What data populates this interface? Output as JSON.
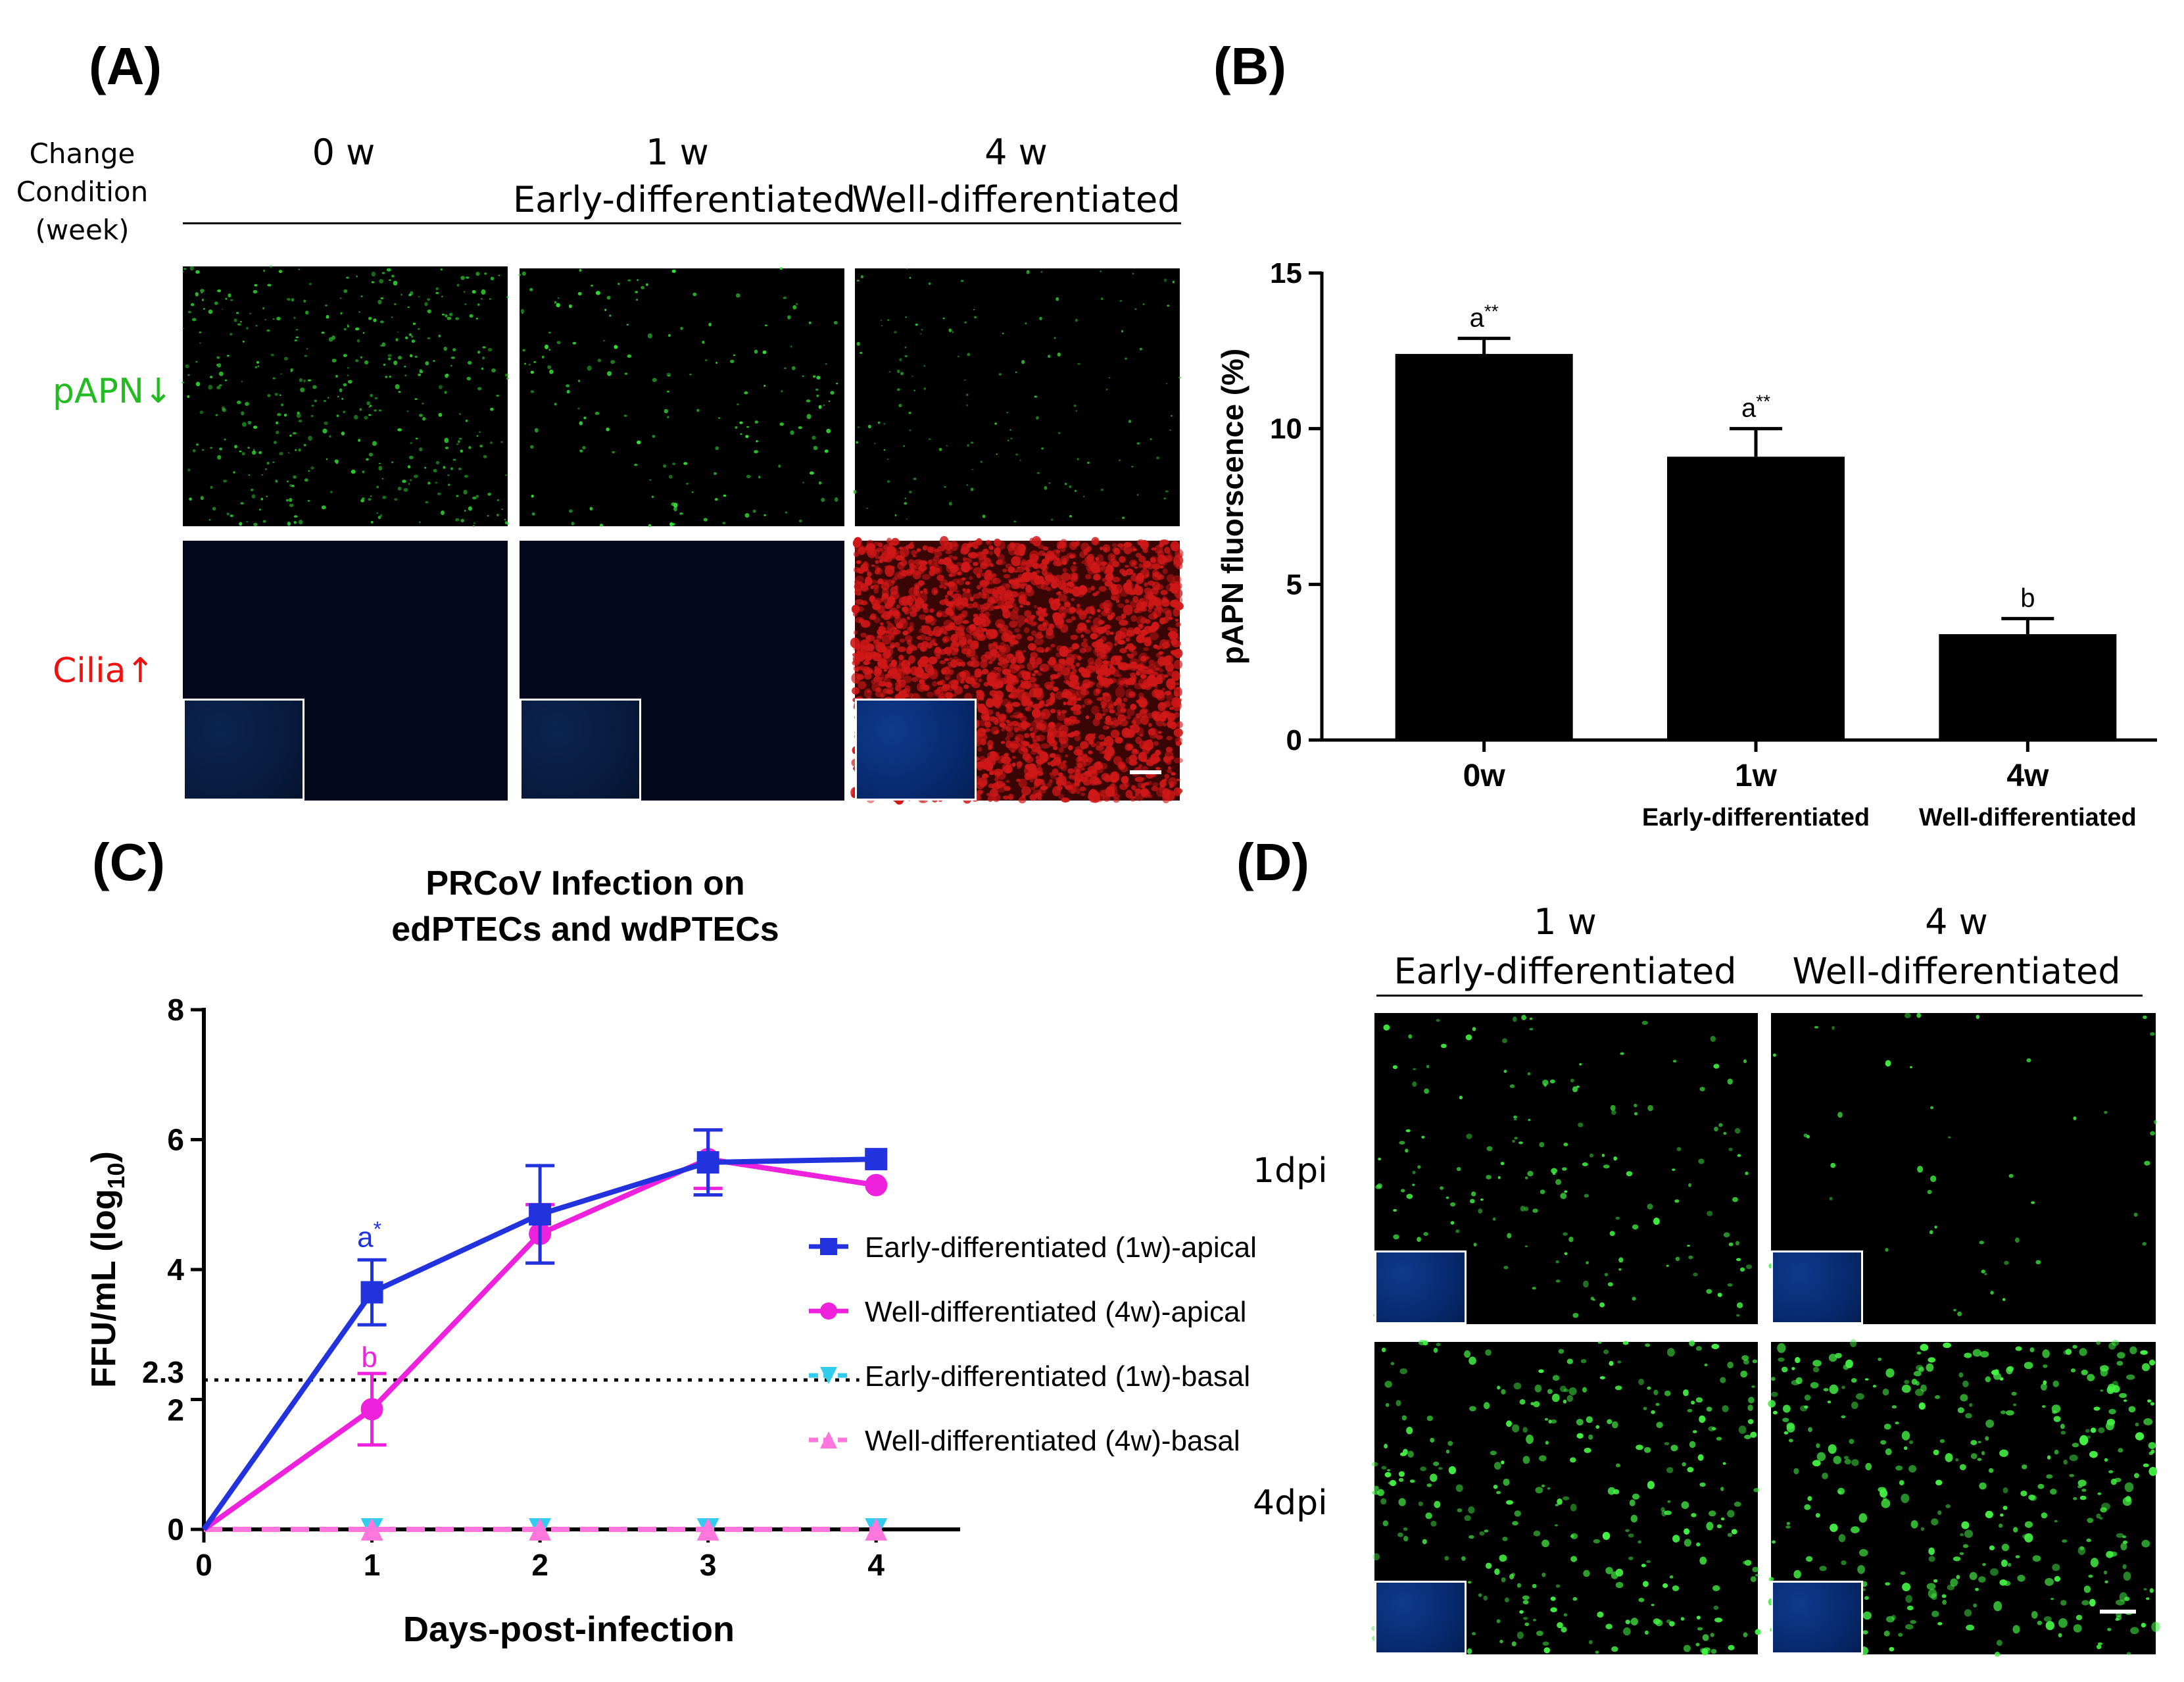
{
  "panelA": {
    "label": "(A)",
    "row_header": [
      "Change",
      "Condition",
      "(week)"
    ],
    "columns": [
      {
        "time": "0 w",
        "state": ""
      },
      {
        "time": "1 w",
        "state": "Early-differentiated"
      },
      {
        "time": "4 w",
        "state": "Well-differentiated"
      }
    ],
    "rows": [
      {
        "label": "pAPN↓",
        "color": "#22bb22"
      },
      {
        "label": "Cilia↑",
        "color": "#ee1111"
      }
    ]
  },
  "panelB": {
    "label": "(B)",
    "chart_data": {
      "type": "bar",
      "ylabel": "pAPN fluorscence (%)",
      "ylim": [
        0,
        15
      ],
      "yticks": [
        0,
        5,
        10,
        15
      ],
      "categories": [
        "0w",
        "1w",
        "4w"
      ],
      "sublabels": [
        "",
        "Early-differentiated",
        "Well-differentiated"
      ],
      "values": [
        12.4,
        9.1,
        3.4
      ],
      "errors": [
        0.5,
        0.9,
        0.5
      ],
      "annotations": [
        "a**",
        "a**",
        "b"
      ],
      "bar_color": "#000000"
    }
  },
  "panelC": {
    "label": "(C)",
    "chart_data": {
      "type": "line",
      "title": [
        "PRCoV Infection on",
        "edPTECs and wdPTECs"
      ],
      "xlabel": "Days-post-infection",
      "ylabel": "FFU/mL (log10)",
      "xlim": [
        0,
        4.5
      ],
      "ylim": [
        0,
        8
      ],
      "xticks": [
        0,
        1,
        2,
        3,
        4
      ],
      "yticks": [
        0,
        2,
        4,
        6,
        8
      ],
      "threshold": {
        "value": 2.3,
        "label": "2.3"
      },
      "x": [
        0,
        1,
        2,
        3,
        4
      ],
      "series": [
        {
          "name": "Early-differentiated (1w)-apical",
          "color": "#2233dd",
          "marker": "square",
          "dashed": false,
          "values": [
            0,
            3.65,
            4.85,
            5.65,
            5.7
          ],
          "errors": [
            0,
            0.5,
            0.75,
            0.5,
            0
          ]
        },
        {
          "name": "Well-differentiated (4w)-apical",
          "color": "#ee22dd",
          "marker": "circle",
          "dashed": false,
          "values": [
            0,
            1.85,
            4.55,
            5.7,
            5.3
          ],
          "errors": [
            0,
            0.55,
            0.45,
            0.45,
            0
          ]
        },
        {
          "name": "Early-differentiated (1w)-basal",
          "color": "#33ccee",
          "marker": "triangle-down",
          "dashed": true,
          "values": [
            0,
            0,
            0,
            0,
            0
          ],
          "errors": [
            0,
            0,
            0,
            0,
            0
          ]
        },
        {
          "name": "Well-differentiated (4w)-basal",
          "color": "#ff77dd",
          "marker": "triangle-up",
          "dashed": true,
          "values": [
            0,
            0,
            0,
            0,
            0
          ],
          "errors": [
            0,
            0,
            0,
            0,
            0
          ]
        }
      ],
      "annotations": [
        {
          "text": "a*",
          "x": 1,
          "y": 4.35,
          "color": "#2233dd"
        },
        {
          "text": "b",
          "x": 1,
          "y": 2.5,
          "color": "#ee22dd"
        }
      ]
    }
  },
  "panelD": {
    "label": "(D)",
    "columns": [
      {
        "time": "1 w",
        "state": "Early-differentiated"
      },
      {
        "time": "4 w",
        "state": "Well-differentiated"
      }
    ],
    "rows": [
      "1dpi",
      "4dpi"
    ]
  }
}
